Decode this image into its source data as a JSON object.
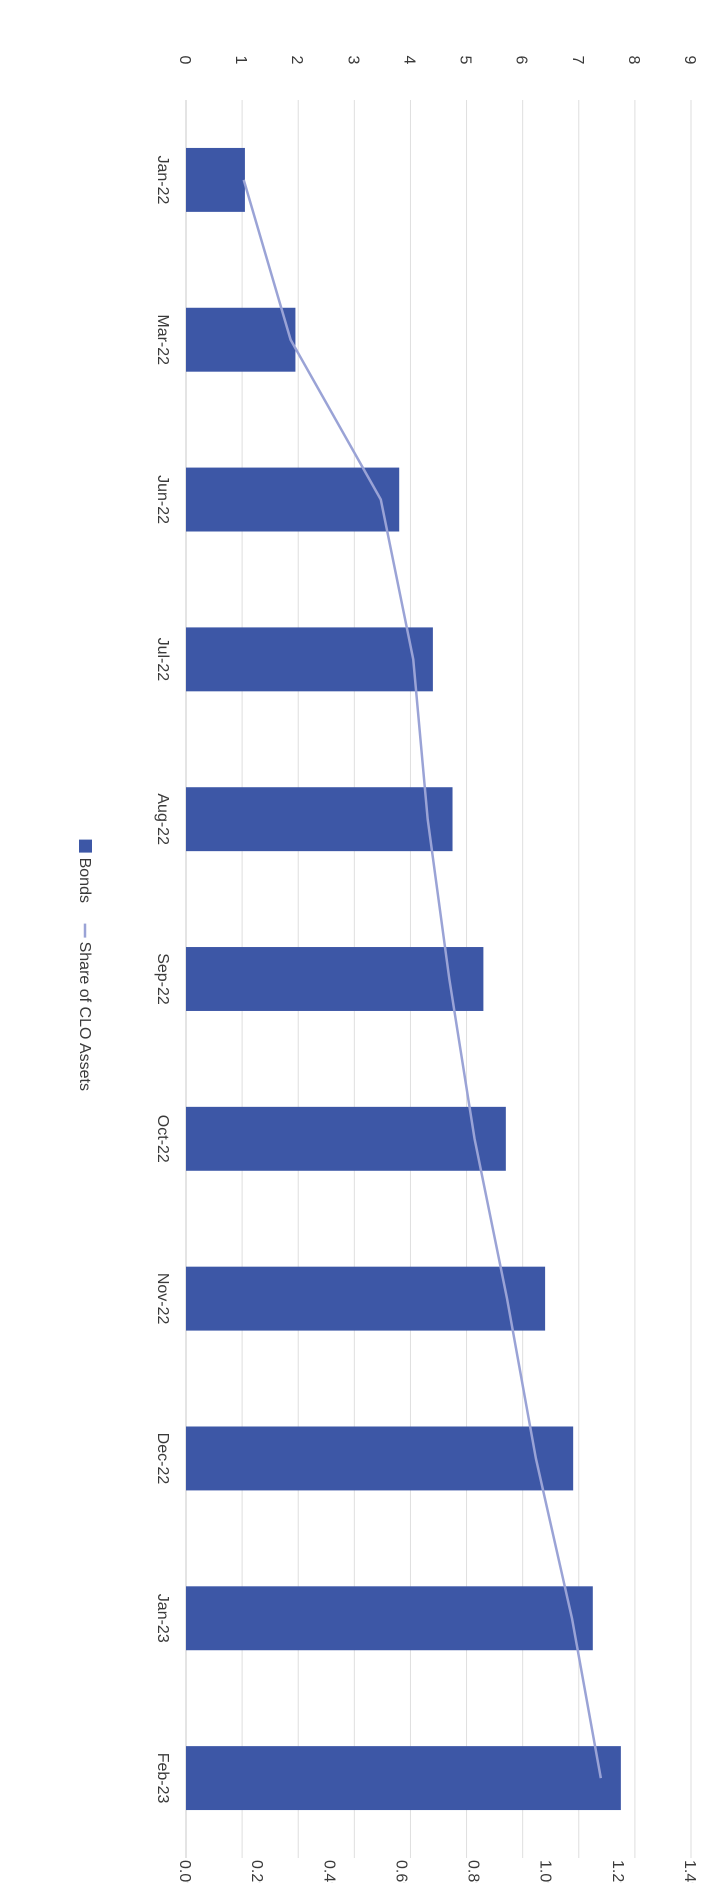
{
  "chart_data": {
    "type": "bar",
    "categories": [
      "Jan-22",
      "Mar-22",
      "Jun-22",
      "Jul-22",
      "Aug-22",
      "Sep-22",
      "Oct-22",
      "Nov-22",
      "Dec-22",
      "Jan-23",
      "Feb-23"
    ],
    "series": [
      {
        "name": "Bonds",
        "type": "bar",
        "axis": "primary",
        "values": [
          1.05,
          1.95,
          3.8,
          4.4,
          4.75,
          5.3,
          5.7,
          6.4,
          6.9,
          7.25,
          7.75
        ],
        "color": "#3d57a6"
      },
      {
        "name": "Share of CLO Assets",
        "type": "line",
        "axis": "secondary",
        "values": [
          0.0016,
          0.0029,
          0.0054,
          0.0063,
          0.0067,
          0.0073,
          0.008,
          0.0089,
          0.0097,
          0.0107,
          0.0115
        ],
        "color": "#9aa3d6"
      }
    ],
    "primary_axis": {
      "min": 0,
      "max": 9,
      "step": 1,
      "tick_labels": [
        "0",
        "1",
        "2",
        "3",
        "4",
        "5",
        "6",
        "7",
        "8",
        "9"
      ]
    },
    "secondary_axis": {
      "min": 0,
      "max": 0.014,
      "step": 0.002,
      "tick_labels": [
        "0.0%",
        "0.2%",
        "0.4%",
        "0.6%",
        "0.8%",
        "1.0%",
        "1.2%",
        "1.4%"
      ]
    },
    "grid": true,
    "orientation": "rotated 90 degrees clockwise",
    "legend": {
      "position": "bottom",
      "items": [
        {
          "label": "Bonds",
          "marker": "square",
          "color": "#3d57a6"
        },
        {
          "label": "Share of CLO Assets",
          "marker": "line",
          "color": "#9aa3d6"
        }
      ]
    },
    "title": "",
    "xlabel": "",
    "ylabel": ""
  }
}
